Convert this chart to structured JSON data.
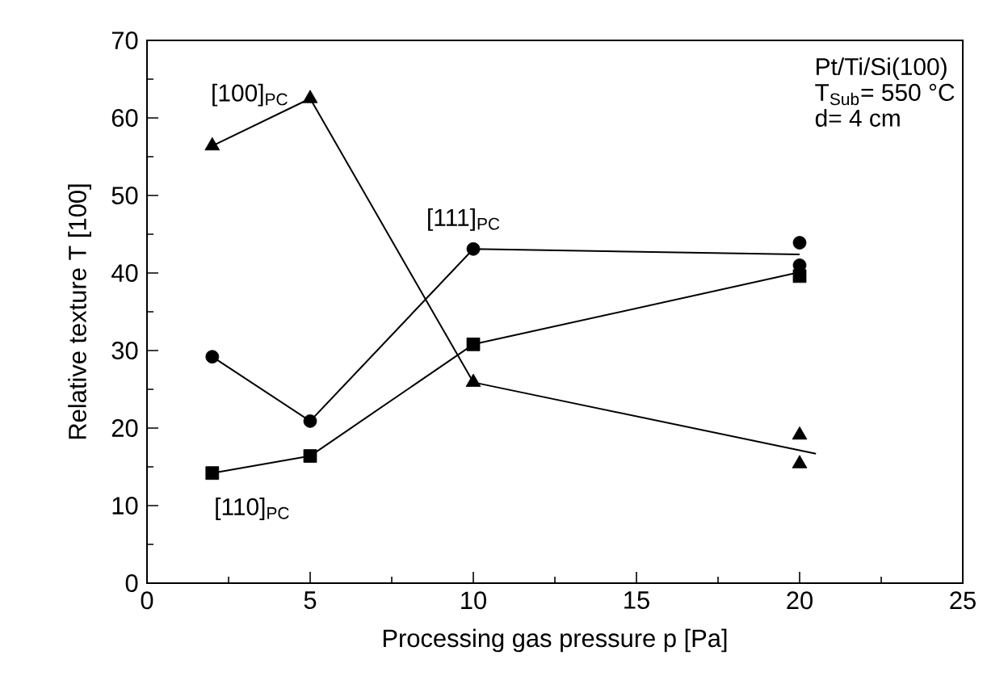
{
  "chart_data": {
    "type": "scatter",
    "xlabel": "Processing gas pressure p [Pa]",
    "ylabel": "Relative texture T [100]",
    "xlim": [
      0,
      25
    ],
    "ylim": [
      0,
      70
    ],
    "xticks": [
      0,
      5,
      10,
      15,
      20,
      25
    ],
    "yticks": [
      0,
      10,
      20,
      30,
      40,
      50,
      60,
      70
    ],
    "grid": false,
    "line_style": "solid",
    "series": [
      {
        "marker": "triangle",
        "color": "#000000",
        "x": [
          2,
          5,
          10,
          20,
          20
        ],
        "values": [
          56.4,
          62.5,
          25.9,
          19.1,
          15.4
        ]
      },
      {
        "marker": "circle",
        "color": "#000000",
        "x": [
          2,
          5,
          10,
          20,
          20
        ],
        "values": [
          29.2,
          20.9,
          43.1,
          43.9,
          41.0
        ]
      },
      {
        "marker": "square",
        "color": "#000000",
        "x": [
          2,
          5,
          10,
          20
        ],
        "values": [
          14.2,
          16.4,
          30.8,
          39.6
        ]
      },
      {
        "type": "line",
        "name": "[100]$_{PC}$",
        "marker": "none",
        "color": "#000000",
        "x": [
          2,
          5,
          10,
          20.5
        ],
        "values": [
          56.4,
          62.5,
          25.9,
          16.7
        ]
      },
      {
        "type": "line",
        "name": "[111]$_{PC}$",
        "marker": "none",
        "color": "#000000",
        "x": [
          2,
          5,
          10,
          20
        ],
        "values": [
          29.2,
          20.9,
          43.1,
          42.4
        ]
      },
      {
        "type": "line",
        "name": "[110]$_{PC}$",
        "marker": "none",
        "color": "#000000",
        "x": [
          2,
          5,
          10,
          20
        ],
        "values": [
          14.2,
          16.4,
          30.8,
          40.1
        ]
      }
    ],
    "annotations": [
      "Pt/Ti/Si(100)",
      "T$_{Sub}$= 550 °C",
      "d= 4 cm"
    ]
  }
}
